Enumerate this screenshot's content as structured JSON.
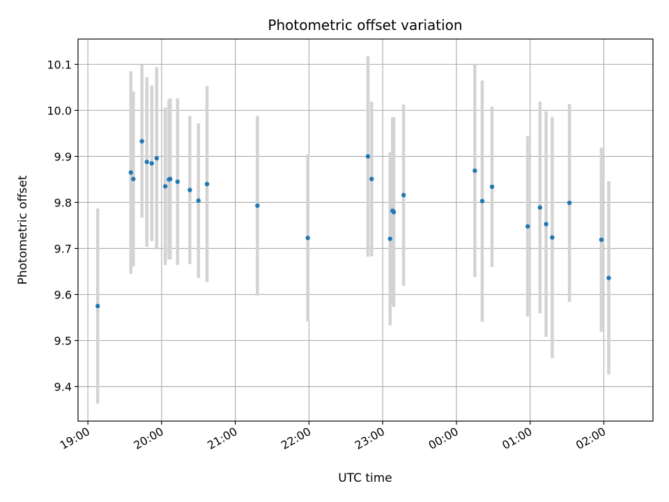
{
  "chart_data": {
    "type": "scatter",
    "title": "Photometric offset variation",
    "xlabel": "UTC time",
    "ylabel": "Photometric offset",
    "grid": true,
    "xlim": [
      "18:52",
      "02:40"
    ],
    "ylim": [
      9.325,
      10.155
    ],
    "xticks": [
      "19:00",
      "20:00",
      "21:00",
      "22:00",
      "23:00",
      "00:00",
      "01:00",
      "02:00"
    ],
    "yticks": [
      9.4,
      9.5,
      9.6,
      9.7,
      9.8,
      9.9,
      10.0,
      10.1
    ],
    "colors": {
      "points": "#1f77b4",
      "errorbars": "#d3d3d3",
      "grid": "#b0b0b0"
    },
    "series": [
      {
        "points": [
          {
            "t": "19:08",
            "y": 9.575,
            "err": 0.212
          },
          {
            "t": "19:35",
            "y": 9.865,
            "err": 0.22
          },
          {
            "t": "19:37",
            "y": 9.851,
            "err": 0.19
          },
          {
            "t": "19:44",
            "y": 9.933,
            "err": 0.166
          },
          {
            "t": "19:48",
            "y": 9.888,
            "err": 0.184
          },
          {
            "t": "19:52",
            "y": 9.885,
            "err": 0.169
          },
          {
            "t": "19:56",
            "y": 9.896,
            "err": 0.198
          },
          {
            "t": "20:03",
            "y": 9.835,
            "err": 0.171
          },
          {
            "t": "20:06",
            "y": 9.85,
            "err": 0.173
          },
          {
            "t": "20:07",
            "y": 9.851,
            "err": 0.175
          },
          {
            "t": "20:13",
            "y": 9.845,
            "err": 0.181
          },
          {
            "t": "20:23",
            "y": 9.827,
            "err": 0.161
          },
          {
            "t": "20:30",
            "y": 9.804,
            "err": 0.168
          },
          {
            "t": "20:37",
            "y": 9.84,
            "err": 0.213
          },
          {
            "t": "21:18",
            "y": 9.793,
            "err": 0.195
          },
          {
            "t": "21:59",
            "y": 9.723,
            "err": 0.181
          },
          {
            "t": "22:48",
            "y": 9.9,
            "err": 0.218
          },
          {
            "t": "22:51",
            "y": 9.851,
            "err": 0.168
          },
          {
            "t": "23:06",
            "y": 9.721,
            "err": 0.188
          },
          {
            "t": "23:08",
            "y": 9.782,
            "err": 0.203
          },
          {
            "t": "23:09",
            "y": 9.779,
            "err": 0.206
          },
          {
            "t": "23:17",
            "y": 9.816,
            "err": 0.197
          },
          {
            "t": "00:15",
            "y": 9.869,
            "err": 0.231
          },
          {
            "t": "00:21",
            "y": 9.803,
            "err": 0.262
          },
          {
            "t": "00:29",
            "y": 9.834,
            "err": 0.174
          },
          {
            "t": "00:58",
            "y": 9.748,
            "err": 0.196
          },
          {
            "t": "01:08",
            "y": 9.789,
            "err": 0.23
          },
          {
            "t": "01:13",
            "y": 9.753,
            "err": 0.245
          },
          {
            "t": "01:18",
            "y": 9.724,
            "err": 0.262
          },
          {
            "t": "01:32",
            "y": 9.799,
            "err": 0.215
          },
          {
            "t": "01:58",
            "y": 9.719,
            "err": 0.2
          },
          {
            "t": "02:04",
            "y": 9.636,
            "err": 0.21
          }
        ]
      }
    ]
  }
}
